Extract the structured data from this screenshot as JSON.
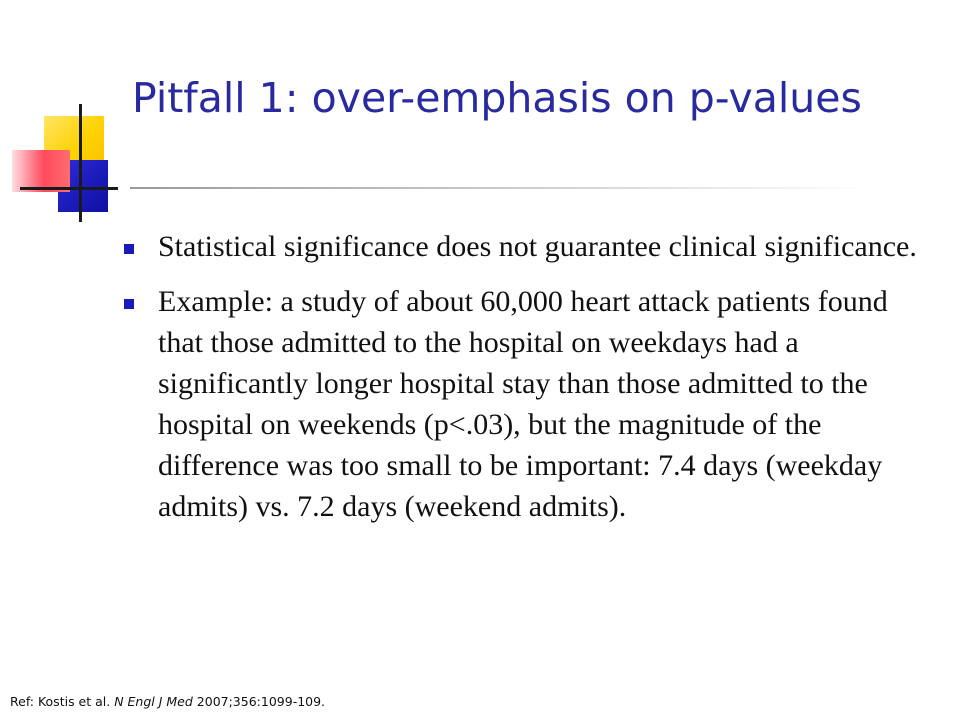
{
  "slide": {
    "title": "Pitfall 1: over-emphasis on p-values",
    "bullets": [
      {
        "text": "Statistical significance does not guarantee clinical significance."
      },
      {
        "text": "Example: a study of about 60,000 heart attack patients found that those admitted to the hospital on weekdays had a significantly longer hospital stay than those admitted to the hospital on weekends (p<.03), but the magnitude of the difference was too small to be important: 7.4 days (weekday admits) vs. 7.2 days (weekend admits)."
      }
    ],
    "reference": {
      "prefix": "Ref: Kostis et al. ",
      "journal": "N Engl J Med",
      "suffix": " 2007;356:1099-109."
    }
  },
  "colors": {
    "title": "#2a2aa0",
    "bullet_marker": "#1a1ab8",
    "logo_yellow": "#ffd200",
    "logo_blue": "#1a1ab8",
    "logo_red": "#ff4a5e"
  }
}
